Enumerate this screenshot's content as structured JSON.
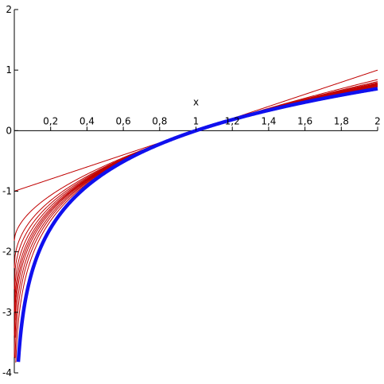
{
  "chart_data": {
    "type": "line",
    "xlabel": "x",
    "ylabel": "",
    "xlim": [
      0,
      2
    ],
    "ylim": [
      -4,
      2
    ],
    "x_ticks": [
      {
        "v": 0.2,
        "label": "0,2"
      },
      {
        "v": 0.4,
        "label": "0,4"
      },
      {
        "v": 0.6,
        "label": "0,6"
      },
      {
        "v": 0.8,
        "label": "0,8"
      },
      {
        "v": 1.0,
        "label": "1"
      },
      {
        "v": 1.2,
        "label": "1,2"
      },
      {
        "v": 1.4,
        "label": "1,4"
      },
      {
        "v": 1.6,
        "label": "1,6"
      },
      {
        "v": 1.8,
        "label": "1,8"
      },
      {
        "v": 2.0,
        "label": "2"
      }
    ],
    "y_ticks": [
      {
        "v": 2,
        "label": "2"
      },
      {
        "v": 1,
        "label": "1"
      },
      {
        "v": 0,
        "label": "0"
      },
      {
        "v": -1,
        "label": "-1"
      },
      {
        "v": -2,
        "label": "-2"
      },
      {
        "v": -3,
        "label": "-3"
      },
      {
        "v": -4,
        "label": "-4"
      }
    ],
    "grid": false,
    "series": [
      {
        "function": "(x^n - 1)/n",
        "n": 1.0,
        "color": "#c00000",
        "x_range": [
          0,
          2
        ]
      },
      {
        "function": "(x^n - 1)/n",
        "n": 0.55,
        "color": "#c00000",
        "x_range": [
          0,
          2
        ]
      },
      {
        "function": "(x^n - 1)/n",
        "n": 0.44,
        "color": "#c00000",
        "x_range": [
          0,
          2
        ]
      },
      {
        "function": "(x^n - 1)/n",
        "n": 0.38,
        "color": "#c00000",
        "x_range": [
          0,
          2
        ]
      },
      {
        "function": "(x^n - 1)/n",
        "n": 0.33,
        "color": "#c00000",
        "x_range": [
          0,
          2
        ]
      },
      {
        "function": "(x^n - 1)/n",
        "n": 0.29,
        "color": "#c00000",
        "x_range": [
          0,
          2
        ]
      },
      {
        "function": "(x^n - 1)/n",
        "n": 0.26,
        "color": "#c00000",
        "x_range": [
          0,
          2
        ]
      },
      {
        "function": "(x^n - 1)/n",
        "n": 0.23,
        "color": "#c00000",
        "x_range": [
          0,
          2
        ]
      },
      {
        "function": "(x^n - 1)/n",
        "n": 0.19,
        "color": "#c00000",
        "x_range": [
          0,
          2
        ]
      },
      {
        "function": "(x^n - 1)/n",
        "n": 0.15,
        "color": "#c00000",
        "x_range": [
          0,
          2
        ]
      },
      {
        "function": "(x^n - 1)/n",
        "n": 0.1,
        "color": "#c00000",
        "x_range": [
          0,
          2
        ]
      },
      {
        "function": "ln(x)",
        "color": "#1010ee",
        "x_range": [
          0.018,
          2
        ]
      }
    ]
  }
}
